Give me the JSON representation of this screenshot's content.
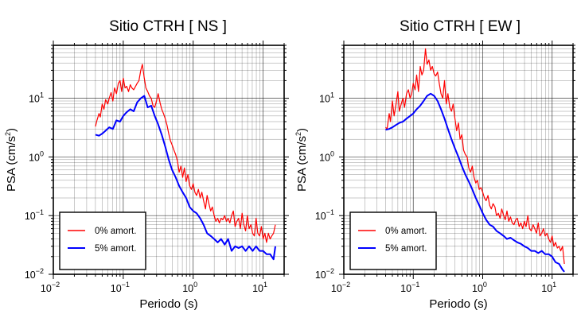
{
  "chart_data": [
    {
      "type": "line",
      "title": "Sitio CTRH [ NS ]",
      "xlabel": "Periodo (s)",
      "ylabel_main": "PSA (cm/s",
      "ylabel_sup": "2",
      "ylabel_close": ")",
      "x_scale": "log",
      "y_scale": "log",
      "xlim": [
        0.01,
        20
      ],
      "ylim": [
        0.01,
        80
      ],
      "grid": true,
      "legend_position": "bottom-left",
      "x_ticks": [
        {
          "base": "10",
          "exp": "−2"
        },
        {
          "base": "10",
          "exp": "−1"
        },
        {
          "base": "10",
          "exp": "0"
        },
        {
          "base": "10",
          "exp": "1"
        }
      ],
      "y_ticks": [
        {
          "base": "10",
          "exp": "−2"
        },
        {
          "base": "10",
          "exp": "−1"
        },
        {
          "base": "10",
          "exp": "0"
        },
        {
          "base": "10",
          "exp": "1"
        }
      ],
      "series": [
        {
          "name": "0% amort.",
          "color": "#ff0000",
          "x": [
            0.04,
            0.042,
            0.045,
            0.047,
            0.05,
            0.053,
            0.056,
            0.06,
            0.063,
            0.067,
            0.071,
            0.075,
            0.08,
            0.085,
            0.09,
            0.095,
            0.1,
            0.106,
            0.112,
            0.119,
            0.126,
            0.133,
            0.141,
            0.15,
            0.158,
            0.168,
            0.178,
            0.188,
            0.2,
            0.211,
            0.224,
            0.237,
            0.251,
            0.266,
            0.282,
            0.299,
            0.316,
            0.335,
            0.355,
            0.376,
            0.398,
            0.422,
            0.447,
            0.473,
            0.501,
            0.531,
            0.562,
            0.596,
            0.631,
            0.668,
            0.708,
            0.75,
            0.794,
            0.841,
            0.891,
            0.944,
            1.0,
            1.06,
            1.12,
            1.19,
            1.26,
            1.33,
            1.41,
            1.5,
            1.58,
            1.68,
            1.78,
            1.88,
            2.0,
            2.11,
            2.24,
            2.37,
            2.51,
            2.66,
            2.82,
            2.99,
            3.16,
            3.35,
            3.55,
            3.76,
            3.98,
            4.22,
            4.47,
            4.73,
            5.01,
            5.31,
            5.62,
            5.96,
            6.31,
            6.68,
            7.08,
            7.5,
            7.94,
            8.41,
            8.91,
            9.44,
            10.0,
            10.6,
            11.2,
            11.9,
            12.6,
            13.3,
            14.1,
            15.0
          ],
          "y": [
            3.3,
            4.2,
            5.5,
            4.8,
            8,
            6.5,
            9.5,
            8,
            10,
            12.5,
            9,
            15,
            12,
            18,
            20,
            13,
            22,
            15,
            16,
            13,
            17,
            15,
            14,
            16,
            18,
            20,
            30,
            38,
            22,
            15,
            13,
            11,
            10,
            7.5,
            7,
            9,
            12,
            8.5,
            6.5,
            5.5,
            4.5,
            3.5,
            2.5,
            1.9,
            1.6,
            1.3,
            1.1,
            0.85,
            0.55,
            0.7,
            0.45,
            0.65,
            0.38,
            0.5,
            0.32,
            0.28,
            0.35,
            0.25,
            0.22,
            0.28,
            0.2,
            0.25,
            0.18,
            0.13,
            0.22,
            0.16,
            0.12,
            0.14,
            0.1,
            0.08,
            0.09,
            0.075,
            0.09,
            0.085,
            0.1,
            0.08,
            0.09,
            0.075,
            0.1,
            0.12,
            0.065,
            0.08,
            0.09,
            0.06,
            0.11,
            0.07,
            0.055,
            0.1,
            0.06,
            0.07,
            0.05,
            0.045,
            0.09,
            0.05,
            0.045,
            0.065,
            0.04,
            0.05,
            0.035,
            0.05,
            0.04,
            0.045,
            0.05,
            0.07
          ]
        },
        {
          "name": "5% amort.",
          "color": "#0000ff",
          "x": [
            0.04,
            0.045,
            0.05,
            0.056,
            0.063,
            0.071,
            0.08,
            0.09,
            0.1,
            0.112,
            0.126,
            0.141,
            0.158,
            0.178,
            0.2,
            0.224,
            0.251,
            0.282,
            0.316,
            0.355,
            0.398,
            0.447,
            0.501,
            0.562,
            0.631,
            0.708,
            0.794,
            0.891,
            1.0,
            1.12,
            1.26,
            1.41,
            1.58,
            1.78,
            2.0,
            2.24,
            2.51,
            2.82,
            3.16,
            3.55,
            3.98,
            4.47,
            5.01,
            5.62,
            6.31,
            7.08,
            7.94,
            8.91,
            10.0,
            11.2,
            12.6,
            14.1,
            15.0
          ],
          "y": [
            2.4,
            2.3,
            2.5,
            2.8,
            3.2,
            3.0,
            4.2,
            4.0,
            5.0,
            5.8,
            6.5,
            6.0,
            8.5,
            10,
            11,
            7,
            7.5,
            5,
            3.6,
            2.4,
            1.5,
            0.9,
            0.6,
            0.45,
            0.32,
            0.25,
            0.2,
            0.14,
            0.12,
            0.11,
            0.09,
            0.07,
            0.05,
            0.045,
            0.04,
            0.035,
            0.04,
            0.032,
            0.04,
            0.025,
            0.03,
            0.028,
            0.03,
            0.025,
            0.03,
            0.025,
            0.03,
            0.025,
            0.025,
            0.022,
            0.022,
            0.018,
            0.03
          ]
        }
      ]
    },
    {
      "type": "line",
      "title": "Sitio CTRH [ EW ]",
      "xlabel": "Periodo (s)",
      "ylabel_main": "PSA (cm/s",
      "ylabel_sup": "2",
      "ylabel_close": ")",
      "x_scale": "log",
      "y_scale": "log",
      "xlim": [
        0.01,
        20
      ],
      "ylim": [
        0.01,
        80
      ],
      "grid": true,
      "legend_position": "bottom-left",
      "x_ticks": [
        {
          "base": "10",
          "exp": "−2"
        },
        {
          "base": "10",
          "exp": "−1"
        },
        {
          "base": "10",
          "exp": "0"
        },
        {
          "base": "10",
          "exp": "1"
        }
      ],
      "y_ticks": [
        {
          "base": "10",
          "exp": "−2"
        },
        {
          "base": "10",
          "exp": "−1"
        },
        {
          "base": "10",
          "exp": "0"
        },
        {
          "base": "10",
          "exp": "1"
        }
      ],
      "series": [
        {
          "name": "0% amort.",
          "color": "#ff0000",
          "x": [
            0.04,
            0.042,
            0.045,
            0.047,
            0.05,
            0.053,
            0.056,
            0.06,
            0.063,
            0.067,
            0.071,
            0.075,
            0.08,
            0.085,
            0.09,
            0.095,
            0.1,
            0.106,
            0.112,
            0.119,
            0.126,
            0.133,
            0.141,
            0.15,
            0.158,
            0.168,
            0.178,
            0.188,
            0.2,
            0.211,
            0.224,
            0.237,
            0.251,
            0.266,
            0.282,
            0.299,
            0.316,
            0.335,
            0.355,
            0.376,
            0.398,
            0.422,
            0.447,
            0.473,
            0.501,
            0.531,
            0.562,
            0.596,
            0.631,
            0.668,
            0.708,
            0.75,
            0.794,
            0.841,
            0.891,
            0.944,
            1.0,
            1.06,
            1.12,
            1.19,
            1.26,
            1.33,
            1.41,
            1.5,
            1.58,
            1.68,
            1.78,
            1.88,
            2.0,
            2.11,
            2.24,
            2.37,
            2.51,
            2.66,
            2.82,
            2.99,
            3.16,
            3.35,
            3.55,
            3.76,
            3.98,
            4.22,
            4.47,
            4.73,
            5.01,
            5.31,
            5.62,
            5.96,
            6.31,
            6.68,
            7.08,
            7.5,
            7.94,
            8.41,
            8.91,
            9.44,
            10.0,
            10.6,
            11.2,
            11.9,
            12.6,
            13.3,
            14.1,
            15.0
          ],
          "y": [
            3.2,
            3.0,
            5.5,
            4.0,
            9,
            5.0,
            7.5,
            13,
            6,
            8,
            10,
            7,
            12,
            14,
            10,
            12,
            18,
            14,
            25,
            13,
            35,
            25,
            30,
            70,
            38,
            45,
            30,
            35,
            26,
            24,
            28,
            18,
            12,
            10,
            20,
            8,
            12,
            7,
            6,
            8,
            4.5,
            2.8,
            3.8,
            2.0,
            2.4,
            1.3,
            1.1,
            1.0,
            0.65,
            0.55,
            0.7,
            0.45,
            0.36,
            0.4,
            0.28,
            0.3,
            0.25,
            0.2,
            0.18,
            0.22,
            0.15,
            0.13,
            0.16,
            0.14,
            0.1,
            0.11,
            0.09,
            0.13,
            0.1,
            0.085,
            0.12,
            0.08,
            0.095,
            0.075,
            0.07,
            0.085,
            0.09,
            0.065,
            0.075,
            0.06,
            0.08,
            0.065,
            0.1,
            0.06,
            0.055,
            0.07,
            0.06,
            0.05,
            0.075,
            0.045,
            0.05,
            0.06,
            0.045,
            0.05,
            0.04,
            0.035,
            0.045,
            0.03,
            0.035,
            0.028,
            0.03,
            0.025,
            0.03,
            0.015
          ]
        },
        {
          "name": "5% amort.",
          "color": "#0000ff",
          "x": [
            0.04,
            0.045,
            0.05,
            0.056,
            0.063,
            0.071,
            0.08,
            0.09,
            0.1,
            0.112,
            0.126,
            0.141,
            0.158,
            0.178,
            0.2,
            0.224,
            0.251,
            0.282,
            0.316,
            0.355,
            0.398,
            0.447,
            0.501,
            0.562,
            0.631,
            0.708,
            0.794,
            0.891,
            1.0,
            1.12,
            1.26,
            1.41,
            1.58,
            1.78,
            2.0,
            2.24,
            2.51,
            2.82,
            3.16,
            3.55,
            3.98,
            4.47,
            5.01,
            5.62,
            6.31,
            7.08,
            7.94,
            8.91,
            10.0,
            11.2,
            12.6,
            14.1,
            15.0
          ],
          "y": [
            2.9,
            3.0,
            3.2,
            3.5,
            3.8,
            4.0,
            4.5,
            5.0,
            5.5,
            6.5,
            7.5,
            9,
            11,
            12,
            11,
            9,
            6.5,
            4.5,
            3.0,
            2.0,
            1.4,
            1.0,
            0.7,
            0.5,
            0.38,
            0.28,
            0.2,
            0.15,
            0.11,
            0.085,
            0.07,
            0.065,
            0.055,
            0.05,
            0.045,
            0.04,
            0.042,
            0.038,
            0.035,
            0.033,
            0.03,
            0.028,
            0.025,
            0.025,
            0.023,
            0.025,
            0.022,
            0.022,
            0.02,
            0.016,
            0.015,
            0.012,
            0.011
          ]
        }
      ]
    }
  ]
}
